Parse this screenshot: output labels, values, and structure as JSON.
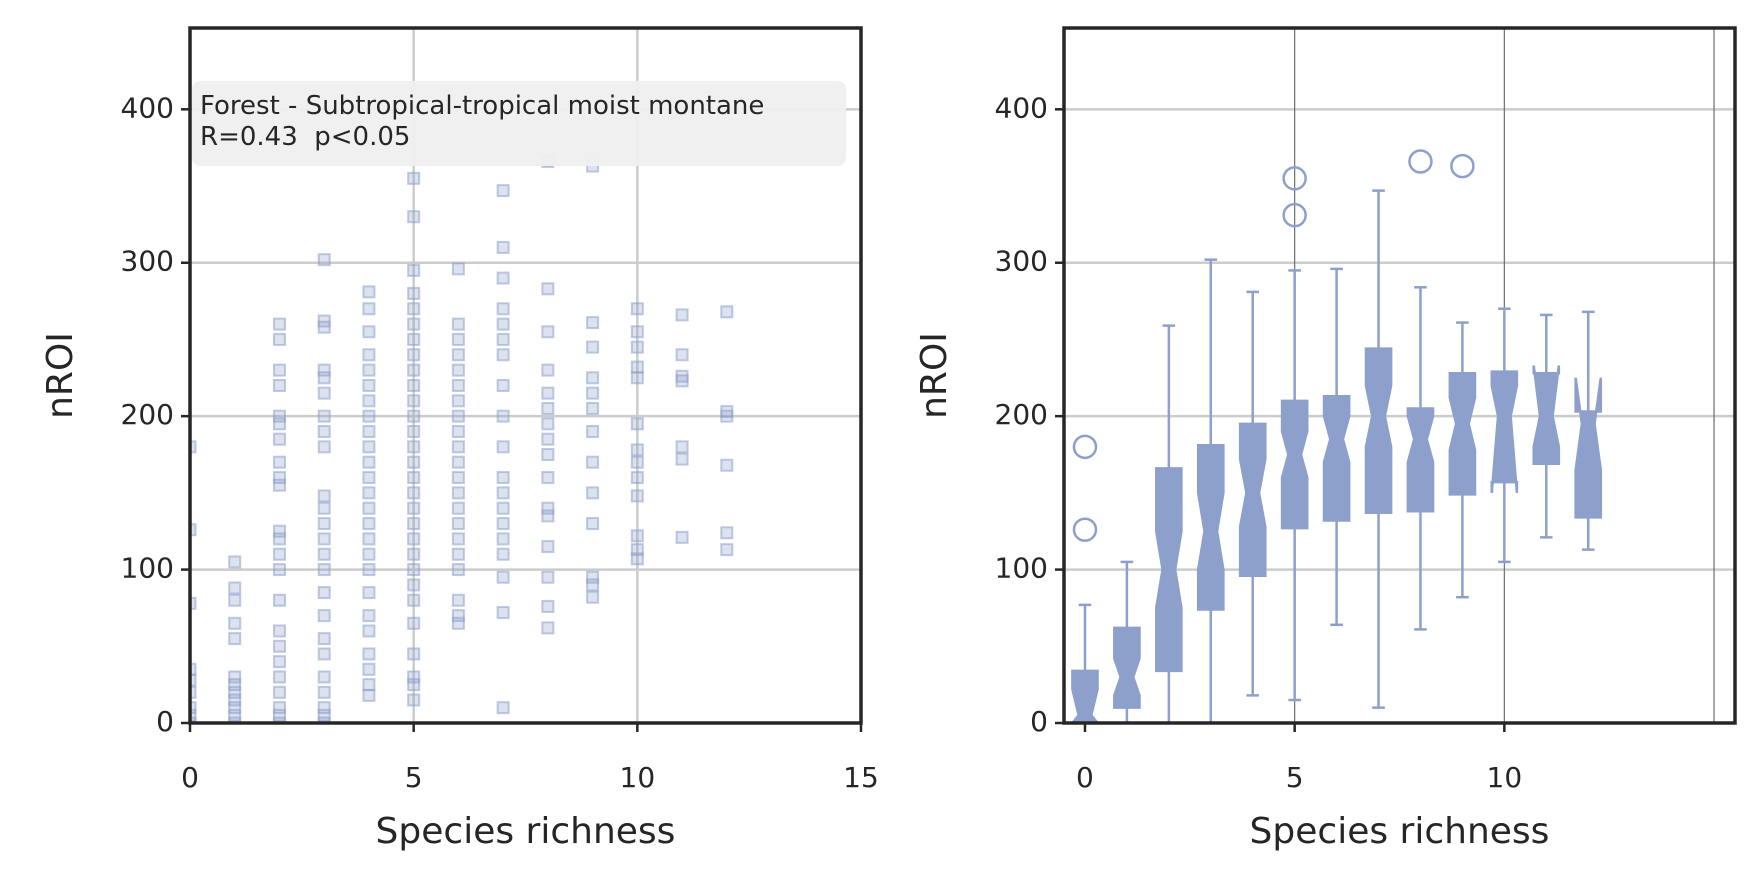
{
  "chart_data": [
    {
      "type": "scatter",
      "xlabel": "Species richness",
      "ylabel": "nROI",
      "annotation": [
        "Forest - Subtropical-tropical moist montane",
        "R=0.43  p<0.05"
      ],
      "color": "#8da0cb",
      "grid": true,
      "xlim": [
        0,
        15
      ],
      "xticks": [
        0,
        5,
        10,
        15
      ],
      "ylim": [
        0,
        453
      ],
      "yticks": [
        0,
        100,
        200,
        300,
        400
      ],
      "x": [
        0,
        0,
        0,
        0,
        0,
        0,
        0,
        0,
        0,
        1,
        1,
        1,
        1,
        1,
        1,
        1,
        1,
        1,
        1,
        1,
        1,
        2,
        2,
        2,
        2,
        2,
        2,
        2,
        2,
        2,
        2,
        2,
        2,
        2,
        2,
        2,
        2,
        2,
        2,
        2,
        2,
        2,
        2,
        2,
        3,
        3,
        3,
        3,
        3,
        3,
        3,
        3,
        3,
        3,
        3,
        3,
        3,
        3,
        3,
        3,
        3,
        3,
        3,
        3,
        3,
        3,
        3,
        3,
        4,
        4,
        4,
        4,
        4,
        4,
        4,
        4,
        4,
        4,
        4,
        4,
        4,
        4,
        4,
        4,
        4,
        4,
        4,
        4,
        4,
        4,
        4,
        4,
        4,
        5,
        5,
        5,
        5,
        5,
        5,
        5,
        5,
        5,
        5,
        5,
        5,
        5,
        5,
        5,
        5,
        5,
        5,
        5,
        5,
        5,
        5,
        5,
        5,
        5,
        5,
        5,
        5,
        5,
        6,
        6,
        6,
        6,
        6,
        6,
        6,
        6,
        6,
        6,
        6,
        6,
        6,
        6,
        6,
        6,
        6,
        6,
        6,
        6,
        6,
        7,
        7,
        7,
        7,
        7,
        7,
        7,
        7,
        7,
        7,
        7,
        7,
        7,
        7,
        7,
        7,
        7,
        7,
        7,
        8,
        8,
        8,
        8,
        8,
        8,
        8,
        8,
        8,
        8,
        8,
        8,
        8,
        8,
        8,
        8,
        9,
        9,
        9,
        9,
        9,
        9,
        9,
        9,
        9,
        9,
        9,
        9,
        9,
        10,
        10,
        10,
        10,
        10,
        10,
        10,
        10,
        10,
        10,
        10,
        10,
        10,
        11,
        11,
        11,
        11,
        11,
        11,
        11,
        12,
        12,
        12,
        12,
        12,
        12
      ],
      "y": [
        0,
        5,
        10,
        20,
        28,
        35,
        78,
        126,
        180,
        0,
        5,
        10,
        15,
        20,
        25,
        30,
        55,
        65,
        80,
        88,
        105,
        0,
        5,
        10,
        20,
        30,
        40,
        50,
        60,
        80,
        100,
        110,
        120,
        125,
        155,
        160,
        170,
        185,
        195,
        200,
        220,
        230,
        250,
        260,
        0,
        5,
        10,
        20,
        30,
        45,
        55,
        70,
        85,
        100,
        110,
        120,
        130,
        140,
        148,
        180,
        190,
        200,
        215,
        225,
        230,
        258,
        262,
        302,
        18,
        25,
        35,
        45,
        60,
        70,
        85,
        100,
        110,
        120,
        130,
        140,
        150,
        160,
        170,
        180,
        190,
        200,
        210,
        220,
        230,
        240,
        255,
        270,
        281,
        15,
        25,
        30,
        45,
        65,
        80,
        90,
        100,
        110,
        120,
        130,
        140,
        150,
        160,
        170,
        180,
        190,
        200,
        210,
        220,
        230,
        240,
        250,
        260,
        270,
        280,
        295,
        330,
        355,
        65,
        70,
        80,
        100,
        110,
        120,
        130,
        140,
        150,
        160,
        170,
        180,
        190,
        200,
        210,
        220,
        230,
        240,
        250,
        260,
        296,
        10,
        72,
        95,
        110,
        120,
        130,
        140,
        150,
        160,
        180,
        200,
        220,
        240,
        250,
        260,
        270,
        290,
        310,
        347,
        62,
        76,
        95,
        115,
        135,
        140,
        160,
        175,
        185,
        195,
        205,
        215,
        230,
        255,
        283,
        366,
        82,
        90,
        95,
        130,
        150,
        170,
        190,
        205,
        215,
        225,
        245,
        261,
        363,
        107,
        113,
        122,
        148,
        160,
        170,
        178,
        195,
        225,
        232,
        245,
        255,
        270,
        121,
        172,
        180,
        223,
        226,
        240,
        266,
        113,
        124,
        168,
        200,
        203,
        268
      ]
    },
    {
      "type": "box",
      "xlabel": "Species richness",
      "ylabel": "nROI",
      "color": "#8da0cb",
      "grid": true,
      "xlim": [
        -0.5,
        15.5
      ],
      "xticks": [
        0,
        5,
        10
      ],
      "vlines": [
        5,
        10,
        15
      ],
      "ylim": [
        0,
        453
      ],
      "yticks": [
        0,
        100,
        200,
        300,
        400
      ],
      "boxes": [
        {
          "position": 0,
          "whislo": 0,
          "q1": 0,
          "notch_low": 0,
          "median": 5,
          "notch_high": 22,
          "q3": 34,
          "whishi": 77,
          "fliers": [
            180,
            126
          ]
        },
        {
          "position": 1,
          "whislo": 0,
          "q1": 10,
          "notch_low": 18,
          "median": 30,
          "notch_high": 42,
          "q3": 62,
          "whishi": 105,
          "fliers": []
        },
        {
          "position": 2,
          "whislo": 0,
          "q1": 34,
          "notch_low": 75,
          "median": 100,
          "notch_high": 125,
          "q3": 166,
          "whishi": 259,
          "fliers": []
        },
        {
          "position": 3,
          "whislo": 0,
          "q1": 74,
          "notch_low": 100,
          "median": 125,
          "notch_high": 150,
          "q3": 181,
          "whishi": 302,
          "fliers": []
        },
        {
          "position": 4,
          "whislo": 18,
          "q1": 96,
          "notch_low": 128,
          "median": 150,
          "notch_high": 172,
          "q3": 195,
          "whishi": 281,
          "fliers": []
        },
        {
          "position": 5,
          "whislo": 15,
          "q1": 127,
          "notch_low": 160,
          "median": 175,
          "notch_high": 190,
          "q3": 210,
          "whishi": 295,
          "fliers": [
            355,
            331
          ]
        },
        {
          "position": 6,
          "whislo": 64,
          "q1": 132,
          "notch_low": 170,
          "median": 185,
          "notch_high": 200,
          "q3": 213,
          "whishi": 296,
          "fliers": []
        },
        {
          "position": 7,
          "whislo": 10,
          "q1": 137,
          "notch_low": 180,
          "median": 200,
          "notch_high": 220,
          "q3": 244,
          "whishi": 347,
          "fliers": []
        },
        {
          "position": 8,
          "whislo": 61,
          "q1": 138,
          "notch_low": 170,
          "median": 185,
          "notch_high": 200,
          "q3": 205,
          "whishi": 284,
          "fliers": [
            366
          ]
        },
        {
          "position": 9,
          "whislo": 82,
          "q1": 149,
          "notch_low": 178,
          "median": 195,
          "notch_high": 212,
          "q3": 228,
          "whishi": 261,
          "fliers": [
            363
          ]
        },
        {
          "position": 10,
          "whislo": 105,
          "q1": 157,
          "notch_low": 150,
          "median": 200,
          "notch_high": 220,
          "q3": 229,
          "whishi": 270,
          "fliers": []
        },
        {
          "position": 11,
          "whislo": 121,
          "q1": 169,
          "notch_low": 180,
          "median": 200,
          "notch_high": 233,
          "q3": 228,
          "whishi": 266,
          "fliers": []
        },
        {
          "position": 12,
          "whislo": 113,
          "q1": 134,
          "notch_low": 165,
          "median": 195,
          "notch_high": 225,
          "q3": 203,
          "whishi": 268,
          "fliers": []
        }
      ]
    }
  ]
}
